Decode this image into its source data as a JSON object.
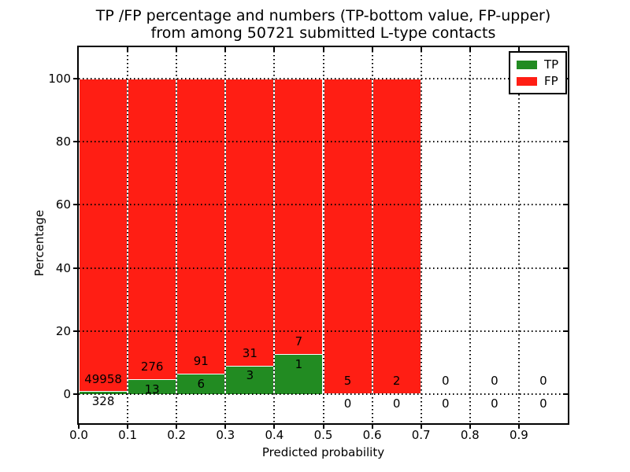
{
  "title": {
    "line1": "TP /FP percentage and numbers (TP-bottom value, FP-upper)",
    "line2": "from among 50721 submitted L-type contacts"
  },
  "axes": {
    "xlabel": "Predicted probability",
    "ylabel": "Percentage",
    "x_tick_labels": [
      "0.0",
      "0.1",
      "0.2",
      "0.3",
      "0.4",
      "0.5",
      "0.6",
      "0.7",
      "0.8",
      "0.9"
    ],
    "y_tick_labels": [
      "0",
      "20",
      "40",
      "60",
      "80",
      "100"
    ]
  },
  "legend": {
    "items": [
      {
        "label": "TP",
        "color": "#228b22"
      },
      {
        "label": "FP",
        "color": "#ff1e14"
      }
    ]
  },
  "chart_data": {
    "type": "bar",
    "variant": "stacked-percentage-histogram",
    "title": "TP /FP percentage and numbers (TP-bottom value, FP-upper) from among 50721 submitted L-type contacts",
    "xlabel": "Predicted probability",
    "ylabel": "Percentage",
    "total_contacts": 50721,
    "bin_width": 0.1,
    "bin_starts": [
      0.0,
      0.1,
      0.2,
      0.3,
      0.4,
      0.5,
      0.6,
      0.7,
      0.8,
      0.9
    ],
    "bars_drawn": [
      true,
      true,
      true,
      true,
      true,
      true,
      true,
      false,
      false,
      false
    ],
    "series": [
      {
        "name": "TP",
        "color": "#228b22",
        "counts": [
          328,
          13,
          6,
          3,
          1,
          0,
          0,
          0,
          0,
          0
        ],
        "pct_of_bin": [
          0.652,
          4.498,
          6.186,
          8.824,
          12.5,
          0,
          0,
          0,
          0,
          0
        ]
      },
      {
        "name": "FP",
        "color": "#ff1e14",
        "counts": [
          49958,
          276,
          91,
          31,
          7,
          5,
          2,
          0,
          0,
          0
        ],
        "pct_of_bin": [
          99.348,
          95.502,
          93.814,
          91.176,
          87.5,
          100,
          100,
          0,
          0,
          0
        ]
      }
    ],
    "x_ticks": [
      0.0,
      0.1,
      0.2,
      0.3,
      0.4,
      0.5,
      0.6,
      0.7,
      0.8,
      0.9
    ],
    "y_ticks": [
      0,
      20,
      40,
      60,
      80,
      100
    ],
    "xlim": [
      0.0,
      1.0
    ],
    "ylim": [
      -10,
      110
    ],
    "grid": "dotted",
    "legend_position": "upper-right",
    "annotation_note": "FP count printed above each TP-bar top, TP count printed below it"
  }
}
